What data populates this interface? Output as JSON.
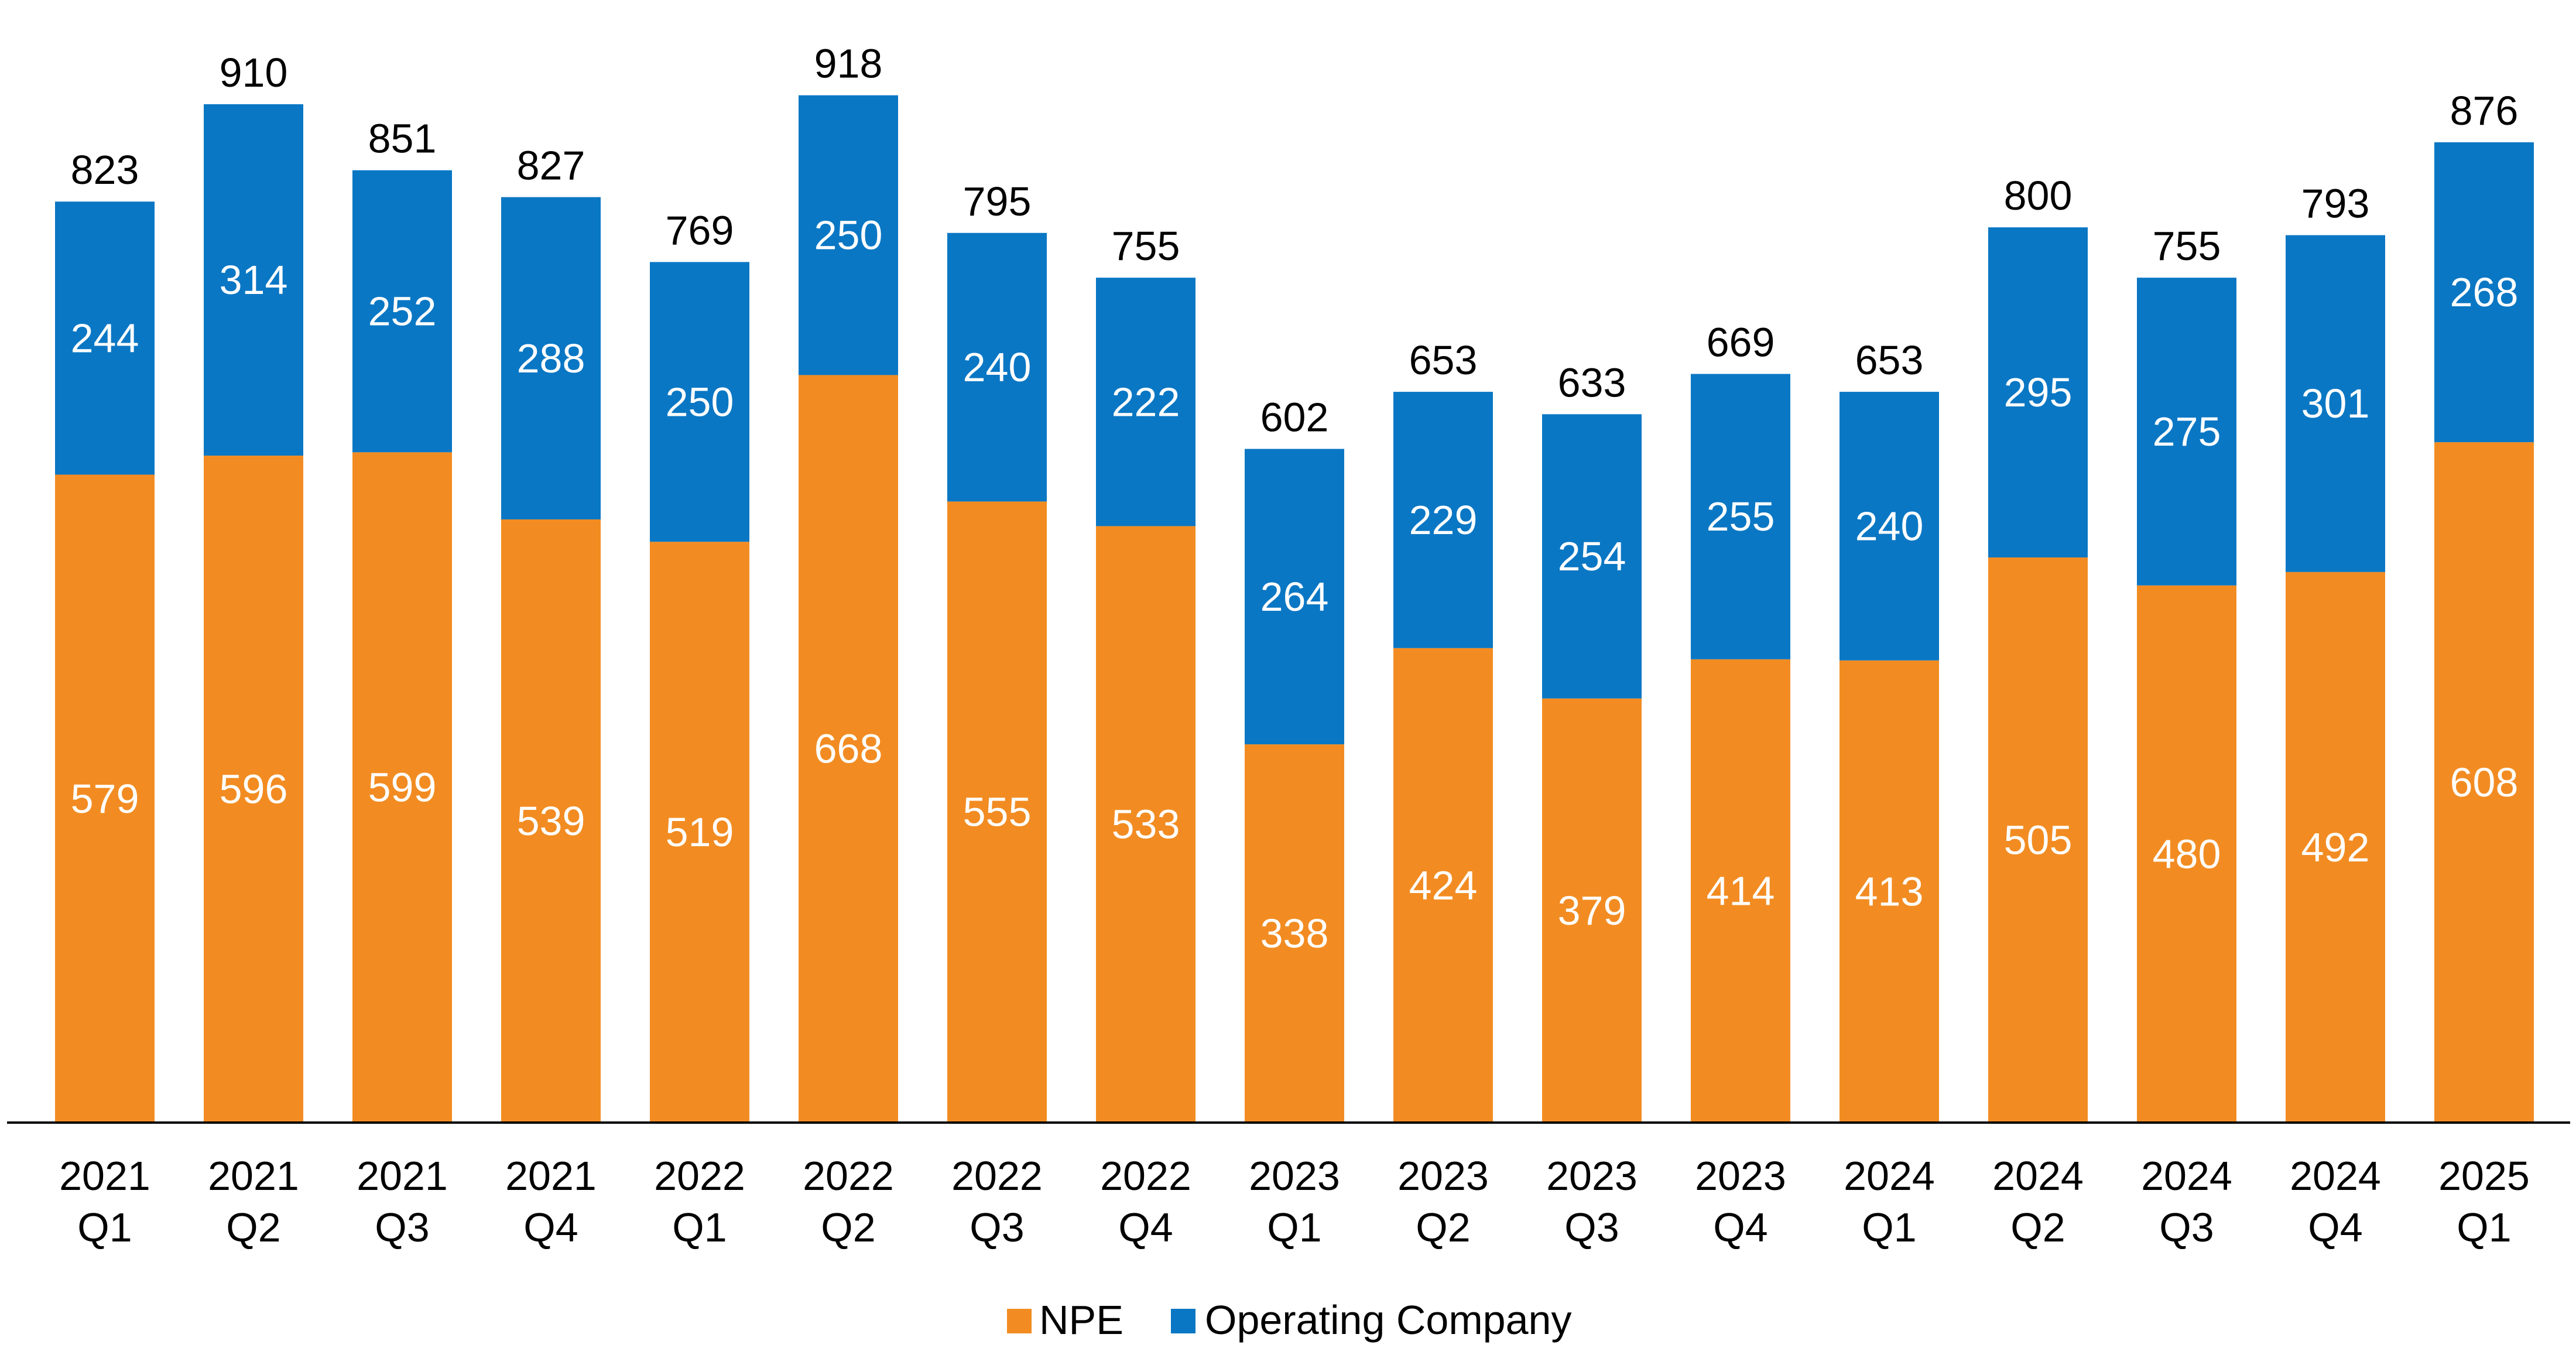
{
  "chart_data": {
    "type": "bar",
    "stacked": true,
    "title": "",
    "xlabel": "",
    "ylabel": "",
    "ylim": [
      0,
      960
    ],
    "grid": false,
    "legend_position": "bottom-center",
    "categories": [
      [
        "2021",
        "Q1"
      ],
      [
        "2021",
        "Q2"
      ],
      [
        "2021",
        "Q3"
      ],
      [
        "2021",
        "Q4"
      ],
      [
        "2022",
        "Q1"
      ],
      [
        "2022",
        "Q2"
      ],
      [
        "2022",
        "Q3"
      ],
      [
        "2022",
        "Q4"
      ],
      [
        "2023",
        "Q1"
      ],
      [
        "2023",
        "Q2"
      ],
      [
        "2023",
        "Q3"
      ],
      [
        "2023",
        "Q4"
      ],
      [
        "2024",
        "Q1"
      ],
      [
        "2024",
        "Q2"
      ],
      [
        "2024",
        "Q3"
      ],
      [
        "2024",
        "Q4"
      ],
      [
        "2025",
        "Q1"
      ]
    ],
    "series": [
      {
        "name": "NPE",
        "color": "#F28C22",
        "values": [
          579,
          596,
          599,
          539,
          519,
          668,
          555,
          533,
          338,
          424,
          379,
          414,
          413,
          505,
          480,
          492,
          608
        ]
      },
      {
        "name": "Operating Company",
        "color": "#0A77C4",
        "values": [
          244,
          314,
          252,
          288,
          250,
          250,
          240,
          222,
          264,
          229,
          254,
          255,
          240,
          295,
          275,
          301,
          268
        ]
      }
    ],
    "totals": [
      823,
      910,
      851,
      827,
      769,
      918,
      795,
      755,
      602,
      653,
      633,
      669,
      653,
      800,
      755,
      793,
      876
    ]
  }
}
